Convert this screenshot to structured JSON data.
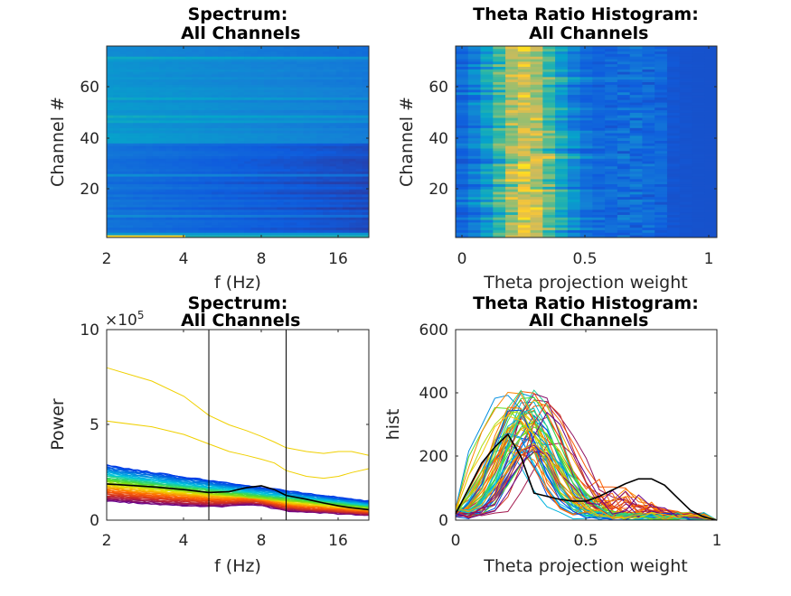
{
  "chart_data": [
    {
      "type": "heatmap",
      "title": "Spectrum: All Channels",
      "xlabel": "f (Hz)",
      "ylabel": "Channel #",
      "xscale": "log",
      "xlim": [
        2,
        21
      ],
      "ylim": [
        0.5,
        75.5
      ],
      "xticks": [
        "2",
        "4",
        "8",
        "16"
      ],
      "yticks": [
        "20",
        "40",
        "60"
      ],
      "colormap": "parula"
    },
    {
      "type": "heatmap",
      "title": "Theta Ratio Histogram: All Channels",
      "xlabel": "Theta projection weight",
      "ylabel": "Channel #",
      "xlim": [
        -0.025,
        1.03
      ],
      "ylim": [
        0.5,
        75.5
      ],
      "xticks": [
        "0",
        "0.5",
        "1"
      ],
      "yticks": [
        "20",
        "40",
        "60"
      ],
      "colormap": "parula"
    },
    {
      "type": "line",
      "title": "Spectrum: All Channels",
      "xlabel": "f (Hz)",
      "ylabel": "Power",
      "xscale": "log",
      "xlim": [
        2,
        21
      ],
      "ylim": [
        0,
        10
      ],
      "y_exponent": "×10⁵",
      "y_exponent_base": "×10",
      "y_exponent_power": "5",
      "xticks": [
        "2",
        "4",
        "8",
        "16"
      ],
      "yticks": [
        "0",
        "5",
        "10"
      ],
      "vertical_lines": [
        5,
        10
      ],
      "x": [
        2,
        3,
        4,
        5,
        6,
        7,
        8,
        9,
        10,
        12,
        14,
        16,
        18,
        21
      ],
      "highlight_series": [
        {
          "color": "#f0d000",
          "values": [
            8.0,
            7.3,
            6.5,
            5.5,
            5.0,
            4.7,
            4.4,
            4.1,
            3.8,
            3.6,
            3.5,
            3.6,
            3.6,
            3.4
          ]
        },
        {
          "color": "#f0d000",
          "values": [
            5.2,
            4.9,
            4.5,
            4.0,
            3.6,
            3.4,
            3.2,
            3.0,
            2.6,
            2.3,
            2.2,
            2.3,
            2.5,
            2.7
          ]
        },
        {
          "color": "#000000",
          "values": [
            1.9,
            1.75,
            1.6,
            1.45,
            1.5,
            1.7,
            1.8,
            1.6,
            1.3,
            1.1,
            0.9,
            0.75,
            0.65,
            0.55
          ]
        }
      ],
      "band_range": {
        "top": [
          2.9,
          1.0
        ],
        "bottom": [
          1.0,
          0.25
        ]
      }
    },
    {
      "type": "line",
      "title": "Theta Ratio Histogram: All Channels",
      "xlabel": "Theta projection weight",
      "ylabel": "hist",
      "xlim": [
        0,
        1
      ],
      "ylim": [
        0,
        600
      ],
      "xticks": [
        "0",
        "0.5",
        "1"
      ],
      "yticks": [
        "0",
        "200",
        "400",
        "600"
      ],
      "x": [
        0,
        0.05,
        0.1,
        0.15,
        0.2,
        0.25,
        0.3,
        0.35,
        0.4,
        0.45,
        0.5,
        0.55,
        0.6,
        0.65,
        0.7,
        0.75,
        0.8,
        0.85,
        0.9,
        0.95,
        1
      ],
      "highlight_series": [
        {
          "color": "#000000",
          "values": [
            20,
            100,
            180,
            230,
            270,
            200,
            85,
            75,
            65,
            60,
            60,
            75,
            95,
            115,
            130,
            130,
            110,
            70,
            30,
            10,
            0
          ]
        }
      ],
      "peak_range": [
        200,
        410
      ]
    }
  ]
}
